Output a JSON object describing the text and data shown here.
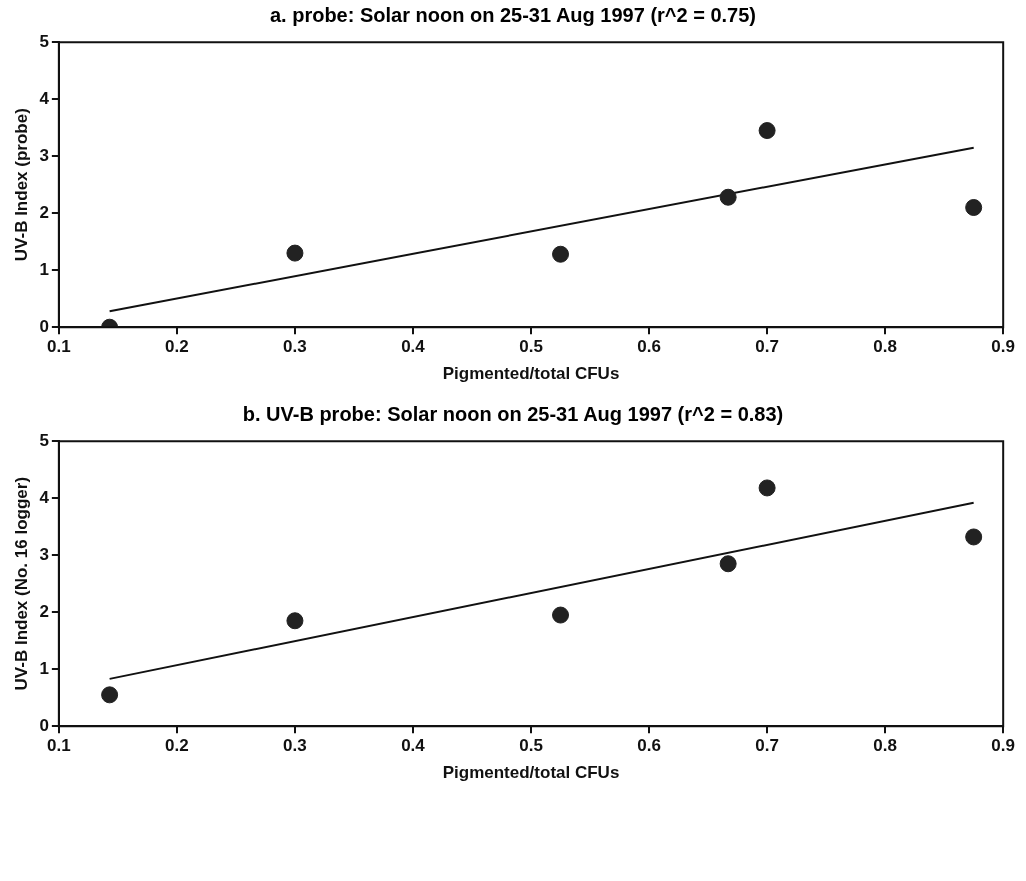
{
  "chart_data": [
    {
      "type": "scatter",
      "title": "a. probe: Solar noon on 25-31 Aug 1997 (r^2 = 0.75)",
      "xlabel": "Pigmented/total CFUs",
      "ylabel": "UV-B Index (probe)",
      "xlim": [
        0.1,
        0.9
      ],
      "ylim": [
        0,
        5
      ],
      "xticks": [
        0.1,
        0.2,
        0.3,
        0.4,
        0.5,
        0.6,
        0.7,
        0.8,
        0.9
      ],
      "yticks": [
        0,
        1,
        2,
        3,
        4,
        5
      ],
      "grid": false,
      "legend": false,
      "marker": "circle",
      "series": [
        {
          "type": "scatter",
          "color": "#222222",
          "x": [
            0.143,
            0.3,
            0.525,
            0.667,
            0.7,
            0.875
          ],
          "values": [
            0,
            1.3,
            1.28,
            2.28,
            3.45,
            2.1
          ]
        },
        {
          "type": "line",
          "color": "#111111",
          "marker": "none",
          "line_style": "solid",
          "x": [
            0.143,
            0.875
          ],
          "values": [
            0.28,
            3.15
          ]
        }
      ]
    },
    {
      "type": "scatter",
      "title": "b. UV-B probe: Solar noon on 25-31 Aug 1997 (r^2 = 0.83)",
      "xlabel": "Pigmented/total CFUs",
      "ylabel": "UV-B Index (No. 16 logger)",
      "xlim": [
        0.1,
        0.9
      ],
      "ylim": [
        0,
        5
      ],
      "xticks": [
        0.1,
        0.2,
        0.3,
        0.4,
        0.5,
        0.6,
        0.7,
        0.8,
        0.9
      ],
      "yticks": [
        0,
        1,
        2,
        3,
        4,
        5
      ],
      "grid": false,
      "legend": false,
      "marker": "circle",
      "series": [
        {
          "type": "scatter",
          "color": "#222222",
          "x": [
            0.143,
            0.3,
            0.525,
            0.667,
            0.7,
            0.875
          ],
          "values": [
            0.55,
            1.85,
            1.95,
            2.85,
            4.18,
            3.32
          ]
        },
        {
          "type": "line",
          "color": "#111111",
          "marker": "none",
          "line_style": "solid",
          "x": [
            0.143,
            0.875
          ],
          "values": [
            0.83,
            3.92
          ]
        }
      ]
    }
  ]
}
